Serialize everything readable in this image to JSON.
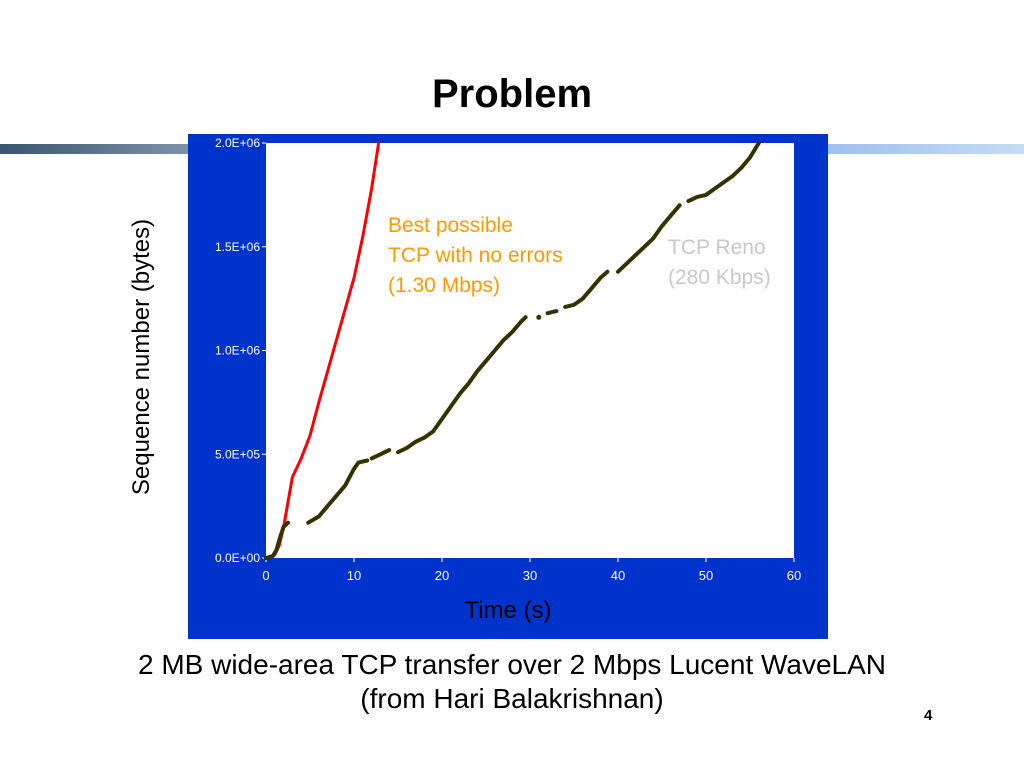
{
  "slide": {
    "title": "Problem",
    "caption_line1": "2 MB wide-area TCP transfer over 2 Mbps Lucent WaveLAN",
    "caption_line2": "(from Hari Balakrishnan)",
    "page_number": "4"
  },
  "colors": {
    "panel": "#0033cc",
    "plot_area": "#ffffff",
    "best_series": "#ff0000",
    "reno_series": "#333300",
    "best_annotation": "#ff9900",
    "reno_annotation": "#c8c8c8"
  },
  "chart_data": {
    "type": "scatter",
    "title": "",
    "xlabel": "Time (s)",
    "ylabel": "Sequence number (bytes)",
    "xlim": [
      0,
      60
    ],
    "ylim": [
      0,
      2000000
    ],
    "x_ticks": [
      "0",
      "10",
      "20",
      "30",
      "40",
      "50",
      "60"
    ],
    "y_ticks": [
      "0.0E+00",
      "5.0E+05",
      "1.0E+06",
      "1.5E+06",
      "2.0E+06"
    ],
    "grid": false,
    "legend": "none",
    "series": [
      {
        "key": "best",
        "segments": [
          [
            [
              0,
              0
            ],
            [
              1,
              15000
            ],
            [
              1.5,
              60000
            ],
            [
              2,
              150000
            ],
            [
              3,
              390000
            ],
            [
              4,
              480000
            ],
            [
              5,
              590000
            ],
            [
              6,
              750000
            ],
            [
              7,
              900000
            ],
            [
              8,
              1050000
            ],
            [
              9,
              1200000
            ],
            [
              10,
              1350000
            ],
            [
              11,
              1550000
            ],
            [
              12,
              1780000
            ],
            [
              12.8,
              2000000
            ]
          ]
        ]
      },
      {
        "key": "reno",
        "segments": [
          [
            [
              0,
              0
            ],
            [
              0.8,
              10000
            ],
            [
              1.2,
              40000
            ],
            [
              1.6,
              100000
            ],
            [
              2,
              150000
            ],
            [
              2.5,
              170000
            ]
          ],
          [
            [
              4.8,
              170000
            ],
            [
              6,
              200000
            ],
            [
              7,
              250000
            ],
            [
              8,
              300000
            ],
            [
              9,
              350000
            ],
            [
              10,
              430000
            ],
            [
              10.5,
              460000
            ],
            [
              11.5,
              470000
            ]
          ],
          [
            [
              12,
              480000
            ],
            [
              13,
              500000
            ],
            [
              14,
              520000
            ]
          ],
          [
            [
              15,
              510000
            ],
            [
              16,
              530000
            ],
            [
              17,
              560000
            ],
            [
              18,
              580000
            ],
            [
              19,
              610000
            ],
            [
              20,
              670000
            ],
            [
              21,
              730000
            ],
            [
              22,
              790000
            ],
            [
              23,
              840000
            ],
            [
              24,
              900000
            ],
            [
              25,
              950000
            ],
            [
              26,
              1000000
            ],
            [
              27,
              1050000
            ],
            [
              28,
              1090000
            ],
            [
              29,
              1140000
            ],
            [
              29.5,
              1160000
            ]
          ],
          [
            [
              31,
              1160000
            ]
          ],
          [
            [
              32,
              1180000
            ],
            [
              33,
              1190000
            ]
          ],
          [
            [
              34,
              1210000
            ],
            [
              35,
              1220000
            ],
            [
              36,
              1250000
            ],
            [
              37,
              1300000
            ],
            [
              38,
              1350000
            ],
            [
              38.8,
              1380000
            ]
          ],
          [
            [
              40,
              1380000
            ],
            [
              41,
              1420000
            ],
            [
              42,
              1460000
            ],
            [
              43,
              1500000
            ],
            [
              44,
              1540000
            ],
            [
              45,
              1600000
            ],
            [
              46,
              1650000
            ],
            [
              47,
              1700000
            ]
          ],
          [
            [
              48,
              1720000
            ],
            [
              49,
              1740000
            ],
            [
              50,
              1750000
            ],
            [
              51,
              1780000
            ],
            [
              52,
              1810000
            ],
            [
              53,
              1840000
            ],
            [
              54,
              1880000
            ],
            [
              55,
              1930000
            ],
            [
              56,
              2000000
            ]
          ]
        ]
      }
    ],
    "annotations": [
      {
        "key": "best",
        "lines": [
          "Best possible",
          "TCP with no errors",
          "(1.30 Mbps)"
        ]
      },
      {
        "key": "reno",
        "lines": [
          "TCP Reno",
          "(280 Kbps)"
        ]
      }
    ]
  }
}
